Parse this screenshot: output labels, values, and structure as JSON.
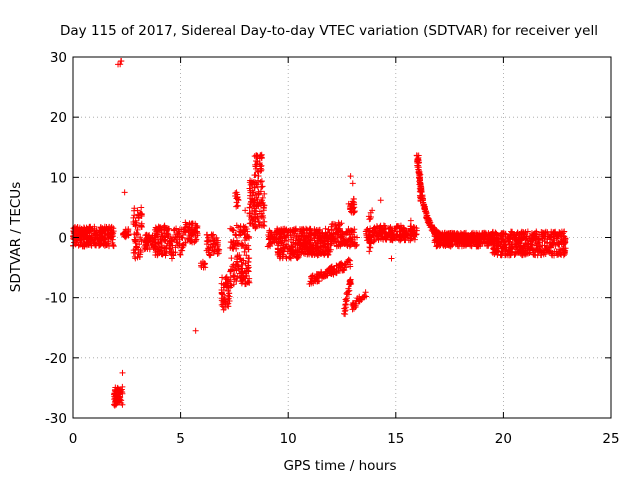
{
  "chart_data": {
    "type": "scatter",
    "title": "Day 115 of 2017, Sidereal Day-to-day VTEC variation (SDTVAR) for receiver yell",
    "xlabel": "GPS time / hours",
    "ylabel": "SDTVAR / TECUs",
    "xlim": [
      0,
      25
    ],
    "ylim": [
      -30,
      30
    ],
    "xticks": [
      0,
      5,
      10,
      15,
      20,
      25
    ],
    "yticks": [
      -30,
      -20,
      -10,
      0,
      10,
      20,
      30
    ],
    "grid": true,
    "marker": "+",
    "color": "#ff0000",
    "clusters": [
      {
        "x0": 0.0,
        "x1": 1.9,
        "y0": -1.5,
        "y1": 1.8,
        "n": 300
      },
      {
        "x0": 1.9,
        "x1": 2.3,
        "y0": -28,
        "y1": -24.8,
        "n": 60
      },
      {
        "x0": 2.0,
        "x1": 2.3,
        "y0": 28.5,
        "y1": 29.5,
        "n": 4
      },
      {
        "x0": 2.3,
        "x1": 2.6,
        "y0": 0.0,
        "y1": 1.5,
        "n": 25
      },
      {
        "x0": 2.8,
        "x1": 3.2,
        "y0": -3.5,
        "y1": 5.0,
        "n": 60
      },
      {
        "x0": 3.3,
        "x1": 3.8,
        "y0": -2.0,
        "y1": 0.5,
        "n": 40
      },
      {
        "x0": 3.8,
        "x1": 4.3,
        "y0": -3.0,
        "y1": 2.0,
        "n": 80
      },
      {
        "x0": 4.3,
        "x1": 5.2,
        "y0": -3.0,
        "y1": 1.5,
        "n": 80
      },
      {
        "x0": 5.2,
        "x1": 5.8,
        "y0": -1.0,
        "y1": 2.5,
        "n": 60
      },
      {
        "x0": 5.8,
        "x1": 6.2,
        "y0": -5.0,
        "y1": -4.0,
        "n": 10
      },
      {
        "x0": 6.2,
        "x1": 6.8,
        "y0": -3.0,
        "y1": 0.5,
        "n": 50
      },
      {
        "x0": 6.9,
        "x1": 7.3,
        "y0": -12.0,
        "y1": -6.5,
        "n": 50
      },
      {
        "x0": 7.3,
        "x1": 8.2,
        "y0": -8.0,
        "y1": 2.0,
        "n": 150
      },
      {
        "x0": 7.5,
        "x1": 7.8,
        "y0": 5.0,
        "y1": 7.5,
        "n": 12
      },
      {
        "x0": 8.2,
        "x1": 8.9,
        "y0": 1.5,
        "y1": 9.5,
        "n": 120
      },
      {
        "x0": 8.4,
        "x1": 8.8,
        "y0": 10.0,
        "y1": 13.8,
        "n": 30
      },
      {
        "x0": 9.0,
        "x1": 9.5,
        "y0": -1.5,
        "y1": 1.5,
        "n": 40
      },
      {
        "x0": 9.5,
        "x1": 10.5,
        "y0": -3.5,
        "y1": 1.5,
        "n": 150
      },
      {
        "x0": 10.5,
        "x1": 12.0,
        "y0": -3.0,
        "y1": 1.5,
        "n": 250
      },
      {
        "x0": 12.0,
        "x1": 12.5,
        "y0": -1.5,
        "y1": 2.5,
        "n": 60
      },
      {
        "x0": 12.5,
        "x1": 13.2,
        "y0": -1.5,
        "y1": 1.5,
        "n": 60
      },
      {
        "x0": 12.8,
        "x1": 13.1,
        "y0": 4.0,
        "y1": 6.5,
        "n": 25
      },
      {
        "x0": 13.6,
        "x1": 14.0,
        "y0": -1.0,
        "y1": 1.5,
        "n": 30
      },
      {
        "x0": 14.0,
        "x1": 15.5,
        "y0": -0.5,
        "y1": 2.0,
        "n": 150
      },
      {
        "x0": 15.5,
        "x1": 16.0,
        "y0": -0.5,
        "y1": 2.0,
        "n": 40
      },
      {
        "x0": 16.8,
        "x1": 19.5,
        "y0": -1.5,
        "y1": 0.8,
        "n": 350
      },
      {
        "x0": 19.5,
        "x1": 22.9,
        "y0": -3.0,
        "y1": 1.0,
        "n": 450
      }
    ],
    "segments": [
      {
        "x0": 11.0,
        "y0": -7.2,
        "x1": 12.9,
        "y1": -4.2,
        "n": 110,
        "spread": 0.7
      },
      {
        "x0": 12.6,
        "y0": -12.5,
        "x1": 12.9,
        "y1": -7.0,
        "n": 30,
        "spread": 0.4
      },
      {
        "x0": 13.0,
        "y0": -11.5,
        "x1": 13.6,
        "y1": -9.5,
        "n": 35,
        "spread": 0.6
      },
      {
        "x0": 13.8,
        "y0": -3.0,
        "x1": 13.8,
        "y1": 4.0,
        "n": 15,
        "spread": 0.2
      },
      {
        "x0": 16.0,
        "y0": 14.0,
        "x1": 16.2,
        "y1": 6.0,
        "n": 60,
        "spread": 0.6
      }
    ],
    "decays": [
      {
        "x0": 16.1,
        "x1": 19.0,
        "ystart": 10.0,
        "yend": -0.2,
        "rate": 3.0,
        "n": 260,
        "spread": 0.5
      }
    ],
    "points": [
      [
        2.3,
        -22.5
      ],
      [
        2.4,
        7.5
      ],
      [
        5.7,
        -15.5
      ],
      [
        3.0,
        4.5
      ],
      [
        8.7,
        13.5
      ],
      [
        7.6,
        7.5
      ],
      [
        12.9,
        10.2
      ],
      [
        13.0,
        9.0
      ],
      [
        14.3,
        6.2
      ],
      [
        13.9,
        4.5
      ],
      [
        14.8,
        -3.5
      ],
      [
        15.7,
        2.8
      ],
      [
        4.6,
        -3.5
      ],
      [
        8.0,
        4.5
      ],
      [
        7.0,
        -12.0
      ],
      [
        9.8,
        0.8
      ],
      [
        12.5,
        0.2
      ],
      [
        15.2,
        -0.5
      ]
    ]
  }
}
